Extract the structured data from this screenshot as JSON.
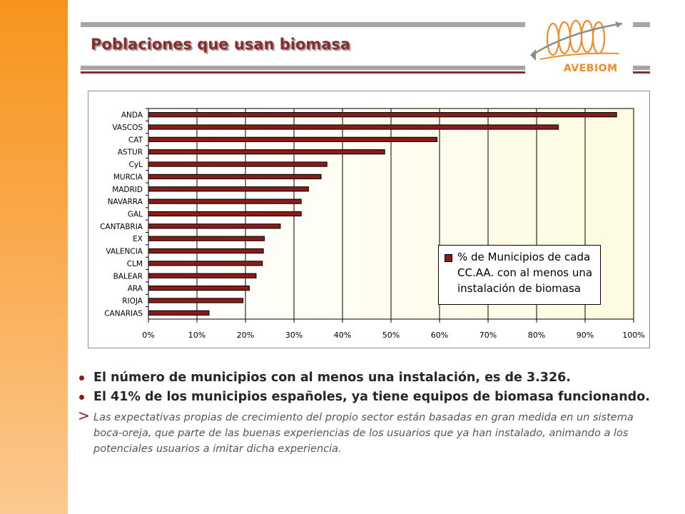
{
  "slide": {
    "title": "Poblaciones que usan biomasa",
    "logo_text": "AVEBIOM"
  },
  "chart_data": {
    "type": "bar",
    "orientation": "horizontal",
    "categories": [
      "ANDA",
      "VASCOS",
      "CAT",
      "ASTUR",
      "CyL",
      "MURCIA",
      "MADRID",
      "NAVARRA",
      "GAL",
      "CANTABRIA",
      "EX",
      "VALENCIA",
      "CLM",
      "BALEAR",
      "ARA",
      "RIOJA",
      "CANARIAS"
    ],
    "series": [
      {
        "name": "% de Municipios de cada CC.AA. con al menos una instalación de biomasa",
        "values": [
          96.5,
          84.5,
          59.5,
          48.7,
          36.8,
          35.6,
          33.0,
          31.5,
          31.5,
          27.2,
          23.9,
          23.7,
          23.5,
          22.2,
          20.8,
          19.5,
          12.5
        ]
      }
    ],
    "xlim": [
      0,
      100
    ],
    "x_ticks": [
      "0%",
      "10%",
      "20%",
      "30%",
      "40%",
      "50%",
      "60%",
      "70%",
      "80%",
      "90%",
      "100%"
    ],
    "grid": true,
    "legend_position": "bottom-right",
    "legend_lines": [
      "% de Municipios de cada",
      "CC.AA. con al menos una",
      "instalación de biomasa"
    ],
    "colors": {
      "bar": "#8b1a1a",
      "plot_bg": "#fdfbe0"
    }
  },
  "bullets": [
    "El número de municipios con al menos una instalación, es de 3.326.",
    "El 41% de los municipios españoles, ya tiene equipos de biomasa funcionando."
  ],
  "note": {
    "marker": ">",
    "text": "Las expectativas propias de crecimiento del propio sector están basadas en gran medida en un sistema boca-oreja, que parte de las buenas experiencias de los usuarios que ya han instalado, animando a los potenciales usuarios a imitar dicha experiencia."
  },
  "colors": {
    "brand": "#8b2b2b",
    "sidebar": "#f7941d",
    "logo_orange": "#f28c28"
  }
}
